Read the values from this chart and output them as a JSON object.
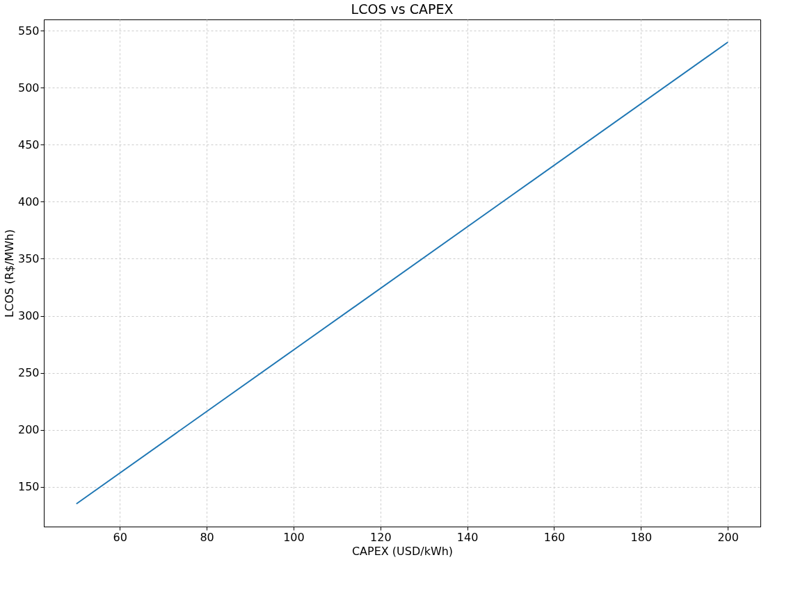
{
  "chart_data": {
    "type": "line",
    "title": "LCOS vs CAPEX",
    "xlabel": "CAPEX (USD/kWh)",
    "ylabel": "LCOS (R$/MWh)",
    "x": [
      50,
      100,
      150,
      200
    ],
    "series": [
      {
        "color": "#1f77b4",
        "values": [
          135,
          270,
          405,
          540
        ]
      }
    ],
    "xlim": [
      42.5,
      207.5
    ],
    "xticks": [
      60,
      80,
      100,
      120,
      140,
      160,
      180,
      200
    ],
    "ylim": [
      115,
      560
    ],
    "yticks": [
      150,
      200,
      250,
      300,
      350,
      400,
      450,
      500,
      550
    ],
    "grid": true,
    "line_style": "solid",
    "marker": "none",
    "legend": false
  }
}
